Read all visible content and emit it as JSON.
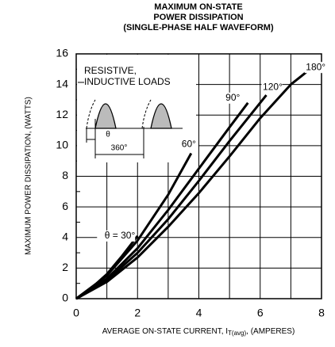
{
  "chart_data": {
    "type": "line",
    "title": [
      "MAXIMUM ON-STATE",
      "POWER DISSIPATION",
      "(SINGLE-PHASE HALF WAVEFORM)"
    ],
    "x_label": "AVERAGE ON-STATE CURRENT, I",
    "x_label_sub": "T(avg)",
    "x_label_end": ", (AMPERES)",
    "y_label": "MAXIMUM POWER DISSIPATION, (WATTS)",
    "inset_label": [
      "RESISTIVE,",
      "INDUCTIVE LOADS"
    ],
    "inset_theta": "θ",
    "inset_period": "360°",
    "xlim": [
      0,
      8
    ],
    "ylim": [
      0,
      16
    ],
    "xticks": [
      0,
      2,
      4,
      6,
      8
    ],
    "yticks": [
      0,
      2,
      4,
      6,
      8,
      10,
      12,
      14,
      16
    ],
    "x_minor_grid": [
      1,
      3,
      5,
      7
    ],
    "y_minor_grid": [
      1,
      3,
      5,
      7,
      9,
      11,
      13,
      15
    ],
    "grid": true,
    "color": "#000000",
    "series": [
      {
        "name": "θ = 30°",
        "x": [
          0,
          0.5,
          1,
          1.5,
          2
        ],
        "values": [
          0,
          0.7,
          1.6,
          2.8,
          4.1
        ]
      },
      {
        "name": "60°",
        "x": [
          0,
          1,
          2,
          3,
          3.75
        ],
        "values": [
          0,
          1.5,
          3.8,
          6.8,
          9.5
        ]
      },
      {
        "name": "90°",
        "x": [
          0,
          1,
          2,
          3,
          4,
          5,
          5.6
        ],
        "values": [
          0,
          1.3,
          3.3,
          5.8,
          8.5,
          11.2,
          12.8
        ]
      },
      {
        "name": "120°",
        "x": [
          0,
          1,
          2,
          3,
          4,
          5,
          6.2
        ],
        "values": [
          0,
          1.2,
          3,
          5.2,
          7.7,
          10.3,
          13.3
        ]
      },
      {
        "name": "180°",
        "x": [
          0,
          1,
          2,
          3,
          4,
          5,
          6,
          7,
          7.5
        ],
        "values": [
          0,
          1.1,
          2.7,
          4.7,
          6.9,
          9.3,
          11.8,
          14,
          14.8
        ]
      }
    ]
  }
}
